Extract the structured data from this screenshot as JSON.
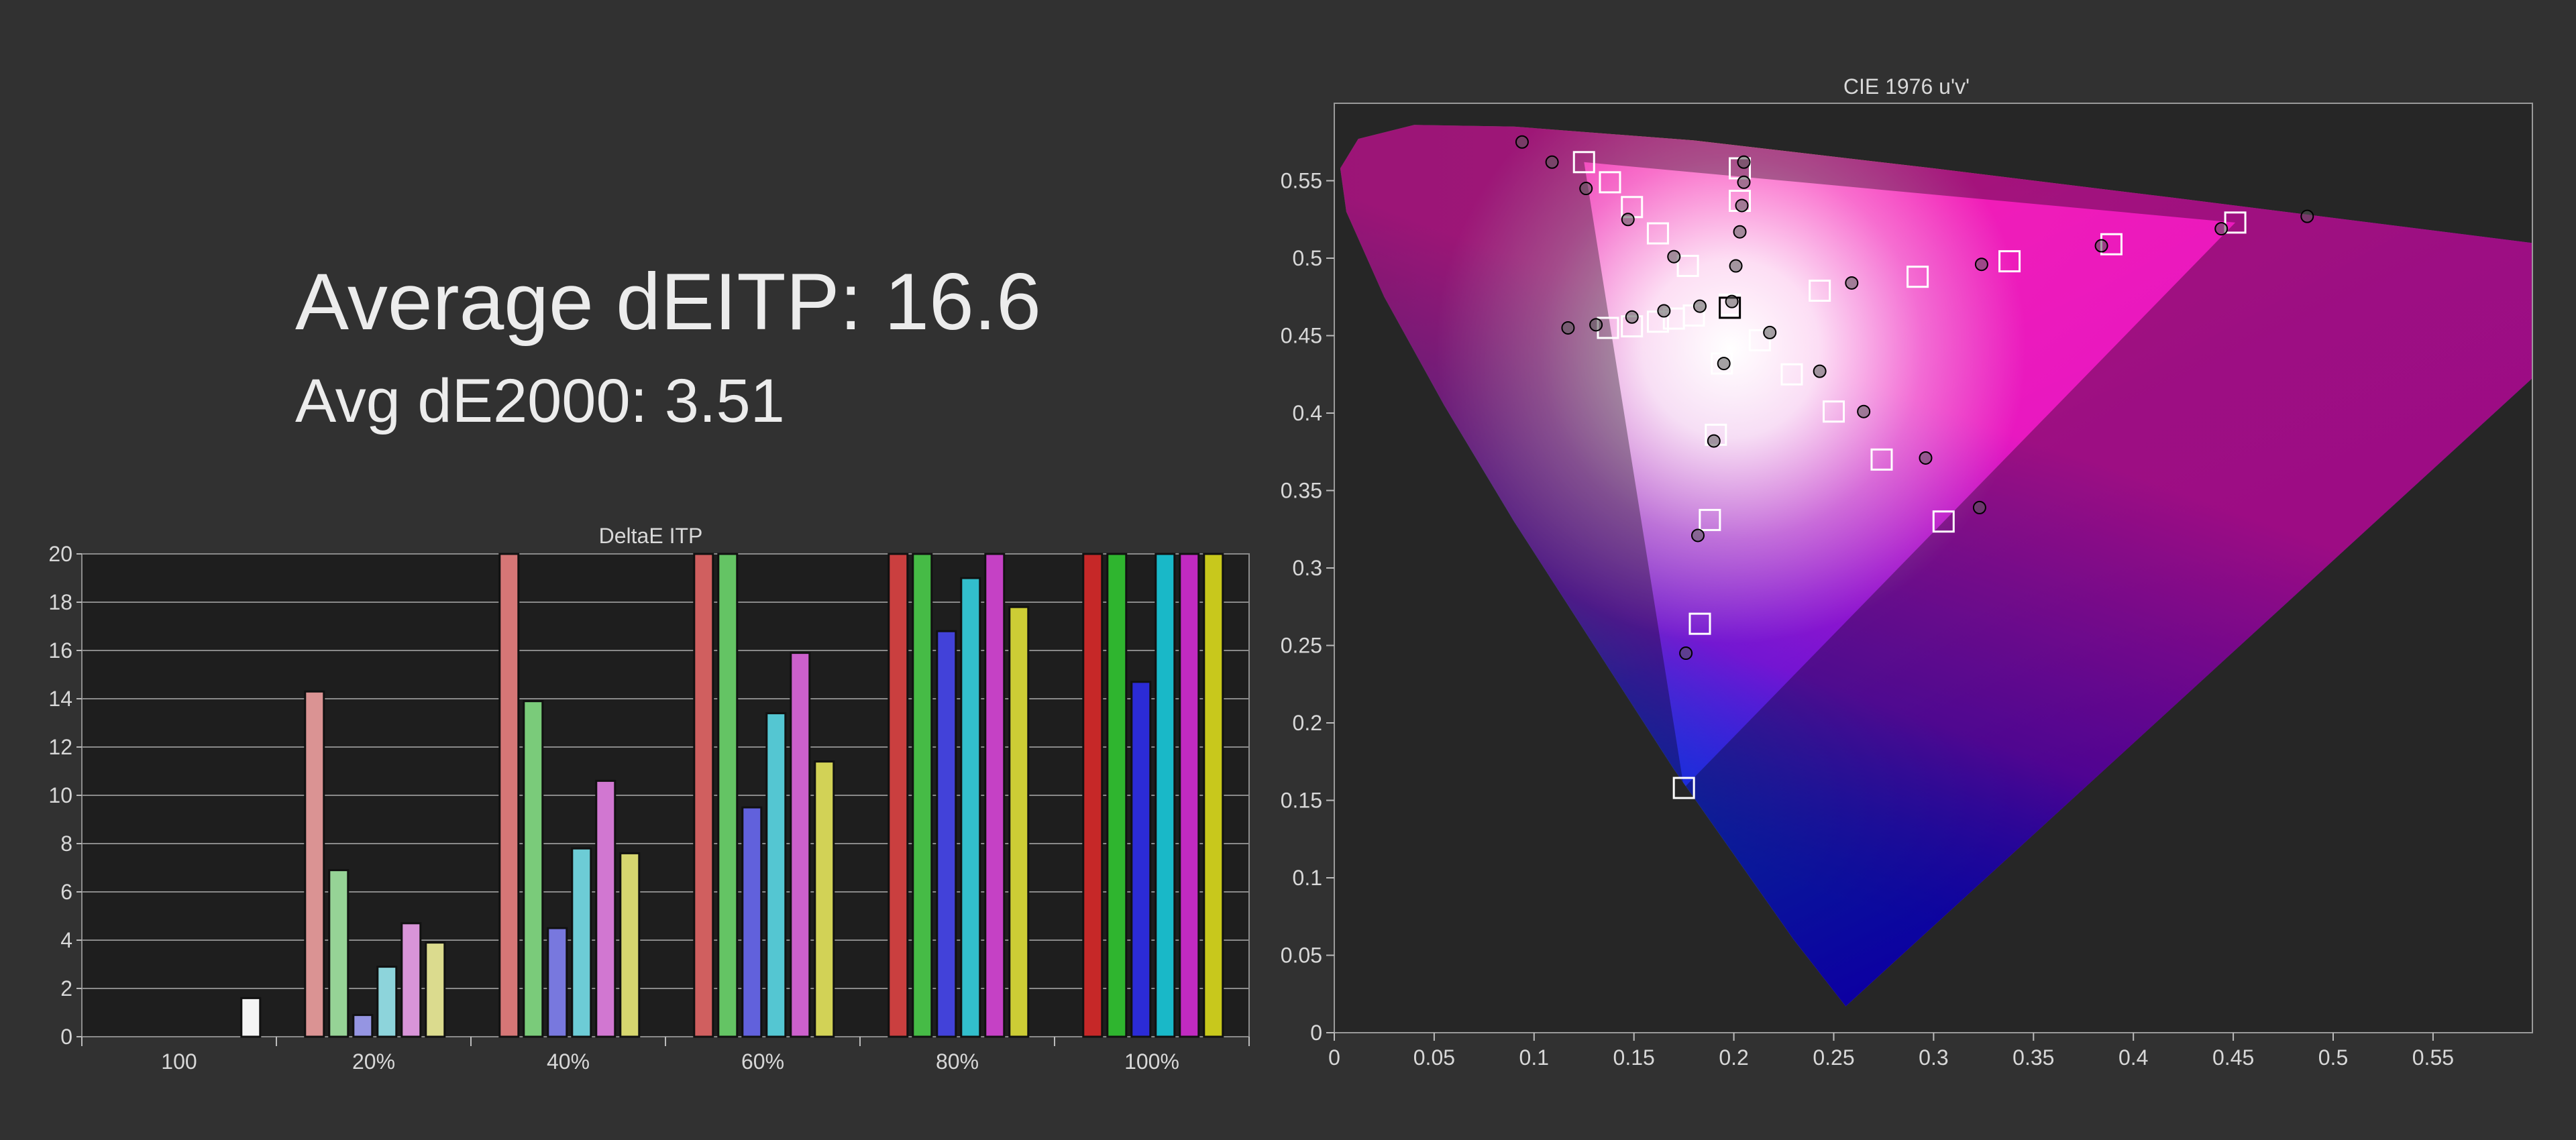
{
  "stats": {
    "average_deitp": "Average dEITP: 16.6",
    "avg_de2000": "Avg dE2000: 3.51"
  },
  "chart_data": [
    {
      "type": "bar",
      "title": "DeltaE ITP",
      "ylim": [
        0,
        20
      ],
      "yticks": [
        0,
        2,
        4,
        6,
        8,
        10,
        12,
        14,
        16,
        18,
        20
      ],
      "grid": true,
      "categories": [
        "100",
        "20%",
        "40%",
        "60%",
        "80%",
        "100%"
      ],
      "series_colors": {
        "white": "#ffffff",
        "red": "#c62828",
        "green": "#2fb52f",
        "blue": "#2b2bd6",
        "cyan": "#19b8c8",
        "magenta": "#c02ac0",
        "yellow": "#c8c81c"
      },
      "groups": [
        {
          "category": "100",
          "bars": [
            {
              "series": "white",
              "value": 1.6
            }
          ]
        },
        {
          "category": "20%",
          "bars": [
            {
              "series": "red",
              "value": 14.3
            },
            {
              "series": "green",
              "value": 6.9
            },
            {
              "series": "blue",
              "value": 0.9
            },
            {
              "series": "cyan",
              "value": 2.9
            },
            {
              "series": "magenta",
              "value": 4.7
            },
            {
              "series": "yellow",
              "value": 3.9
            }
          ]
        },
        {
          "category": "40%",
          "bars": [
            {
              "series": "red",
              "value": 20
            },
            {
              "series": "green",
              "value": 13.9
            },
            {
              "series": "blue",
              "value": 4.5
            },
            {
              "series": "cyan",
              "value": 7.8
            },
            {
              "series": "magenta",
              "value": 10.6
            },
            {
              "series": "yellow",
              "value": 7.6
            }
          ]
        },
        {
          "category": "60%",
          "bars": [
            {
              "series": "red",
              "value": 20
            },
            {
              "series": "green",
              "value": 20
            },
            {
              "series": "blue",
              "value": 9.5
            },
            {
              "series": "cyan",
              "value": 13.4
            },
            {
              "series": "magenta",
              "value": 15.9
            },
            {
              "series": "yellow",
              "value": 11.4
            }
          ]
        },
        {
          "category": "80%",
          "bars": [
            {
              "series": "red",
              "value": 20
            },
            {
              "series": "green",
              "value": 20
            },
            {
              "series": "blue",
              "value": 16.8
            },
            {
              "series": "cyan",
              "value": 19.0
            },
            {
              "series": "magenta",
              "value": 20
            },
            {
              "series": "yellow",
              "value": 17.8
            }
          ]
        },
        {
          "category": "100%",
          "bars": [
            {
              "series": "red",
              "value": 20
            },
            {
              "series": "green",
              "value": 20
            },
            {
              "series": "blue",
              "value": 14.7
            },
            {
              "series": "cyan",
              "value": 20
            },
            {
              "series": "magenta",
              "value": 20
            },
            {
              "series": "yellow",
              "value": 20
            }
          ]
        }
      ]
    },
    {
      "type": "scatter",
      "title": "CIE 1976 u'v'",
      "xlim": [
        0,
        0.6
      ],
      "ylim": [
        0,
        0.6
      ],
      "xticks": [
        0,
        0.05,
        0.1,
        0.15,
        0.2,
        0.25,
        0.3,
        0.35,
        0.4,
        0.45,
        0.5,
        0.55
      ],
      "yticks": [
        0,
        0.05,
        0.1,
        0.15,
        0.2,
        0.25,
        0.3,
        0.35,
        0.4,
        0.45,
        0.5,
        0.55
      ],
      "gamut_triangle": {
        "red": [
          0.451,
          0.523
        ],
        "green": [
          0.125,
          0.562
        ],
        "blue": [
          0.175,
          0.158
        ]
      },
      "white_point": [
        0.198,
        0.468
      ],
      "targets": [
        [
          0.125,
          0.562
        ],
        [
          0.138,
          0.549
        ],
        [
          0.149,
          0.533
        ],
        [
          0.162,
          0.516
        ],
        [
          0.177,
          0.495
        ],
        [
          0.162,
          0.459
        ],
        [
          0.149,
          0.456
        ],
        [
          0.137,
          0.455
        ],
        [
          0.17,
          0.461
        ],
        [
          0.18,
          0.463
        ],
        [
          0.203,
          0.558
        ],
        [
          0.203,
          0.537
        ],
        [
          0.451,
          0.523
        ],
        [
          0.389,
          0.509
        ],
        [
          0.338,
          0.498
        ],
        [
          0.292,
          0.488
        ],
        [
          0.243,
          0.479
        ],
        [
          0.213,
          0.447
        ],
        [
          0.305,
          0.33
        ],
        [
          0.274,
          0.37
        ],
        [
          0.25,
          0.401
        ],
        [
          0.229,
          0.425
        ],
        [
          0.175,
          0.158
        ],
        [
          0.183,
          0.264
        ],
        [
          0.188,
          0.331
        ],
        [
          0.191,
          0.386
        ],
        [
          0.194,
          0.432
        ],
        [
          0.198,
          0.47
        ]
      ],
      "measured": [
        [
          0.094,
          0.575
        ],
        [
          0.109,
          0.562
        ],
        [
          0.126,
          0.545
        ],
        [
          0.147,
          0.525
        ],
        [
          0.17,
          0.501
        ],
        [
          0.183,
          0.469
        ],
        [
          0.165,
          0.466
        ],
        [
          0.149,
          0.462
        ],
        [
          0.131,
          0.457
        ],
        [
          0.117,
          0.455
        ],
        [
          0.205,
          0.562
        ],
        [
          0.205,
          0.549
        ],
        [
          0.204,
          0.534
        ],
        [
          0.203,
          0.517
        ],
        [
          0.201,
          0.495
        ],
        [
          0.487,
          0.527
        ],
        [
          0.444,
          0.519
        ],
        [
          0.384,
          0.508
        ],
        [
          0.324,
          0.496
        ],
        [
          0.259,
          0.484
        ],
        [
          0.218,
          0.452
        ],
        [
          0.323,
          0.339
        ],
        [
          0.296,
          0.371
        ],
        [
          0.265,
          0.401
        ],
        [
          0.243,
          0.427
        ],
        [
          0.176,
          0.245
        ],
        [
          0.182,
          0.321
        ],
        [
          0.19,
          0.382
        ],
        [
          0.195,
          0.432
        ],
        [
          0.199,
          0.472
        ]
      ]
    }
  ]
}
